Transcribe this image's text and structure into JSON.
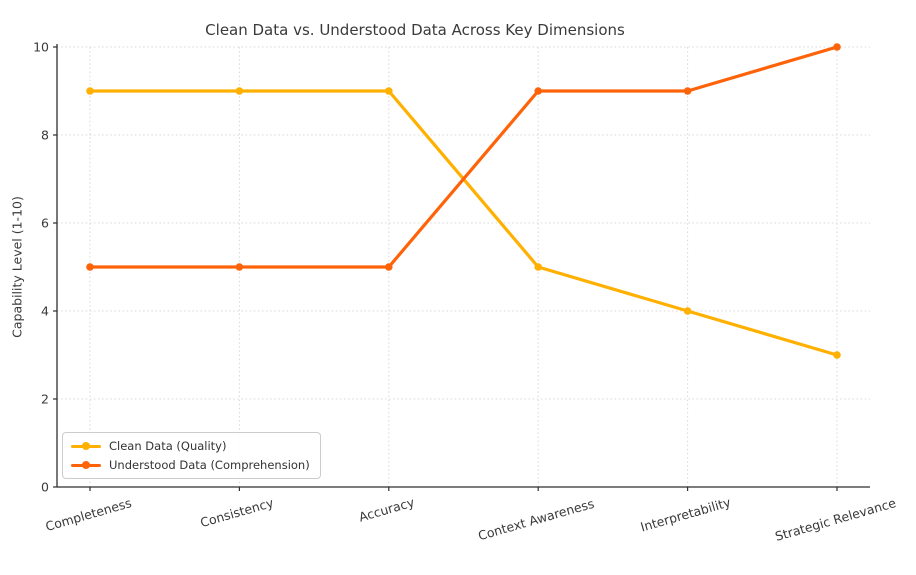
{
  "chart_data": {
    "type": "line",
    "title": "Clean Data vs. Understood Data Across Key Dimensions",
    "xlabel": "",
    "ylabel": "Capability Level (1-10)",
    "categories": [
      "Completeness",
      "Consistency",
      "Accuracy",
      "Context Awareness",
      "Interpretability",
      "Strategic Relevance"
    ],
    "series": [
      {
        "name": "Clean Data (Quality)",
        "color": "#FFB000",
        "marker": "circle",
        "values": [
          9,
          9,
          9,
          5,
          4,
          3
        ]
      },
      {
        "name": "Understood Data (Comprehension)",
        "color": "#FF6309",
        "marker": "circle",
        "values": [
          5,
          5,
          5,
          9,
          9,
          10
        ]
      }
    ],
    "ylim": [
      0,
      10
    ],
    "yticks": [
      0,
      2,
      4,
      6,
      8,
      10
    ],
    "grid": true,
    "grid_style": "dotted",
    "grid_color": "#d8d8d8",
    "spine_color": "#2f2f2f",
    "legend_position": "lower left"
  }
}
